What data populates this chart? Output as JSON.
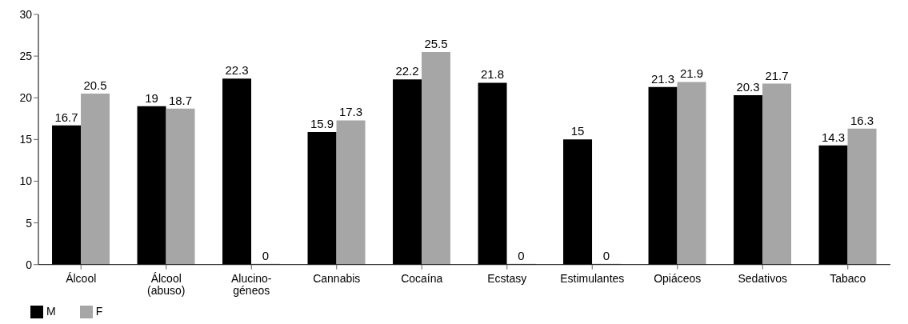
{
  "chart_data": {
    "type": "bar",
    "categories": [
      "Álcool",
      "Álcool\n(abuso)",
      "Alucino-\ngéneos",
      "Cannabis",
      "Cocaína",
      "Ecstasy",
      "Estimulantes",
      "Opiáceos",
      "Sedativos",
      "Tabaco"
    ],
    "series": [
      {
        "name": "M",
        "color": "#000000",
        "values": [
          16.7,
          19,
          22.3,
          15.9,
          22.2,
          21.8,
          15,
          21.3,
          20.3,
          14.3
        ]
      },
      {
        "name": "F",
        "color": "#a6a6a6",
        "values": [
          20.5,
          18.7,
          0,
          17.3,
          25.5,
          0,
          0,
          21.9,
          21.7,
          16.3
        ]
      }
    ],
    "ylim": [
      0,
      30
    ],
    "yticks": [
      0,
      5,
      10,
      15,
      20,
      25,
      30
    ],
    "grid": false,
    "legend": "bottom left",
    "data_labels": true
  }
}
